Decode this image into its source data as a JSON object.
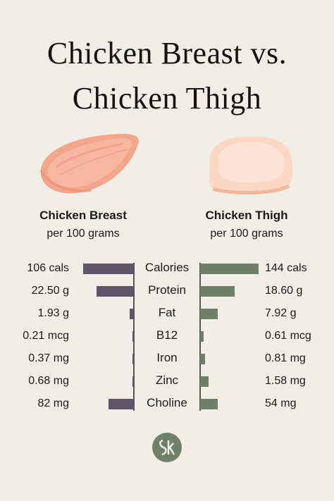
{
  "title_line1": "Chicken Breast vs.",
  "title_line2": "Chicken Thigh",
  "left": {
    "heading": "Chicken Breast",
    "sub": "per 100 grams"
  },
  "right": {
    "heading": "Chicken Thigh",
    "sub": "per 100 grams"
  },
  "colors": {
    "left_bar": "#5d5468",
    "right_bar": "#6f8069",
    "background": "#f1eee8"
  },
  "icons": {
    "left_image": "chicken-breast-illustration",
    "right_image": "chicken-thigh-illustration",
    "logo": "brand-monogram-logo"
  },
  "chart_data": {
    "type": "bar",
    "orientation": "diverging-horizontal",
    "categories": [
      "Calories",
      "Protein",
      "Fat",
      "B12",
      "Iron",
      "Zinc",
      "Choline"
    ],
    "series": [
      {
        "name": "Chicken Breast",
        "values": [
          106,
          22.5,
          1.93,
          0.21,
          0.37,
          0.68,
          82
        ],
        "labels": [
          "106 cals",
          "22.50 g",
          "1.93 g",
          "0.21 mcg",
          "0.37 mg",
          "0.68 mg",
          "82 mg"
        ]
      },
      {
        "name": "Chicken Thigh",
        "values": [
          144,
          18.6,
          7.92,
          0.61,
          0.81,
          1.58,
          54
        ],
        "labels": [
          "144 cals",
          "18.60 g",
          "7.92 g",
          "0.61 mcg",
          "0.81 mg",
          "1.58 mg",
          "54 mg"
        ]
      }
    ],
    "bar_fraction_left": [
      0.97,
      0.72,
      0.08,
      0.03,
      0.03,
      0.03,
      0.48
    ],
    "bar_fraction_right": [
      1.0,
      0.59,
      0.3,
      0.06,
      0.09,
      0.15,
      0.3
    ]
  }
}
